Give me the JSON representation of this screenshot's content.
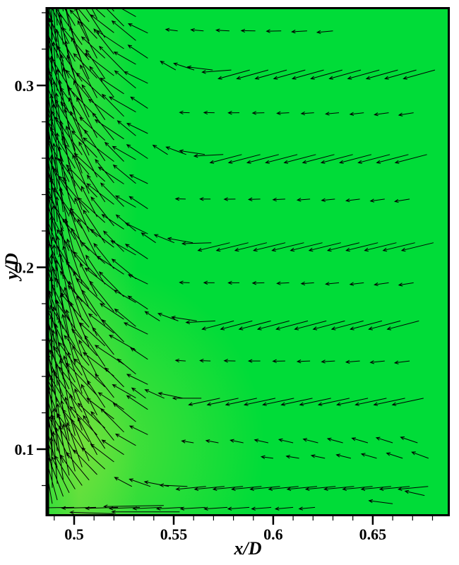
{
  "chart_data": {
    "type": "quiver",
    "title": "",
    "xlabel": "x/D",
    "ylabel": "y/D",
    "x_range": [
      0.4858,
      0.6887
    ],
    "y_range": [
      0.0631,
      0.3431
    ],
    "x_ticks": {
      "major": [
        0.5,
        0.55,
        0.6,
        0.65
      ],
      "labels": [
        "0.5",
        "0.55",
        "0.6",
        "0.65"
      ],
      "minor_step": 0.01
    },
    "y_ticks": {
      "major": [
        0.1,
        0.2,
        0.3
      ],
      "labels": [
        "0.1",
        "0.2",
        "0.3"
      ],
      "minor_step": 0.02
    },
    "legend": "none",
    "grid": false,
    "colors": {
      "flood_green": "#00dc38",
      "flood_green_light": "#8ce146",
      "glow_green": "#b4e43c",
      "vector": "#000000",
      "axis": "#000000",
      "background": "#ffffff"
    },
    "vector_rows": [
      {
        "y": 0.3085,
        "x0": 0.551,
        "dx": 0.0093,
        "n": 15,
        "len0": 0.009,
        "len1": 0.0165,
        "a0": 148,
        "a1": 197,
        "ramp": 4
      },
      {
        "y": 0.262,
        "x0": 0.547,
        "dx": 0.0093,
        "n": 15,
        "len0": 0.009,
        "len1": 0.0165,
        "a0": 145,
        "a1": 196,
        "ramp": 4
      },
      {
        "y": 0.2135,
        "x0": 0.541,
        "dx": 0.0093,
        "n": 16,
        "len0": 0.009,
        "len1": 0.0165,
        "a0": 143,
        "a1": 195,
        "ramp": 4
      },
      {
        "y": 0.1705,
        "x0": 0.543,
        "dx": 0.0093,
        "n": 15,
        "len0": 0.009,
        "len1": 0.0165,
        "a0": 145,
        "a1": 196,
        "ramp": 4
      },
      {
        "y": 0.128,
        "x0": 0.536,
        "dx": 0.0093,
        "n": 16,
        "len0": 0.009,
        "len1": 0.016,
        "a0": 141,
        "a1": 193,
        "ramp": 4
      },
      {
        "y": 0.0795,
        "x0": 0.529,
        "dx": 0.0093,
        "n": 17,
        "len0": 0.01,
        "len1": 0.015,
        "a0": 150,
        "a1": 186,
        "ramp": 4
      },
      {
        "y": 0.33,
        "x0": 0.552,
        "dx": 0.013,
        "n": 7,
        "len0": 0.006,
        "len1": 0.008,
        "a0": 172,
        "a1": 186,
        "ramp": 6
      },
      {
        "y": 0.285,
        "x0": 0.558,
        "dx": 0.0125,
        "n": 10,
        "len0": 0.005,
        "len1": 0.0075,
        "a0": 178,
        "a1": 190,
        "ramp": 9
      },
      {
        "y": 0.2375,
        "x0": 0.556,
        "dx": 0.0125,
        "n": 10,
        "len0": 0.005,
        "len1": 0.0075,
        "a0": 178,
        "a1": 190,
        "ramp": 9
      },
      {
        "y": 0.1915,
        "x0": 0.558,
        "dx": 0.0125,
        "n": 10,
        "len0": 0.005,
        "len1": 0.0075,
        "a0": 178,
        "a1": 190,
        "ramp": 9
      },
      {
        "y": 0.1485,
        "x0": 0.556,
        "dx": 0.0125,
        "n": 10,
        "len0": 0.005,
        "len1": 0.0075,
        "a0": 176,
        "a1": 188,
        "ramp": 9
      },
      {
        "y": 0.1035,
        "x0": 0.56,
        "dx": 0.0125,
        "n": 10,
        "len0": 0.006,
        "len1": 0.009,
        "a0": 170,
        "a1": 160,
        "ramp": 9
      },
      {
        "y": 0.095,
        "x0": 0.6,
        "dx": 0.013,
        "n": 7,
        "len0": 0.006,
        "len1": 0.009,
        "a0": 172,
        "a1": 158,
        "ramp": 6
      },
      {
        "y": 0.068,
        "x0": 0.5,
        "dx": 0.011,
        "n": 12,
        "len0": 0.018,
        "len1": 0.008,
        "a0": 181,
        "a1": 186,
        "ramp": 11
      }
    ],
    "left_columns": [
      {
        "x": 0.4865,
        "y0": 0.068,
        "dy": 0.0085,
        "n": 33,
        "len": 0.0235,
        "a": 91,
        "alt": 3
      },
      {
        "x": 0.489,
        "y0": 0.07,
        "dy": 0.0088,
        "n": 32,
        "len": 0.0255,
        "a": 95,
        "alt": 4
      },
      {
        "x": 0.4915,
        "y0": 0.072,
        "dy": 0.009,
        "n": 31,
        "len": 0.0265,
        "a": 99,
        "alt": 5
      },
      {
        "x": 0.4945,
        "y0": 0.074,
        "dy": 0.0092,
        "n": 30,
        "len": 0.0265,
        "a": 103,
        "alt": 6
      },
      {
        "x": 0.4975,
        "y0": 0.076,
        "dy": 0.0095,
        "n": 29,
        "len": 0.0255,
        "a": 107,
        "alt": 7
      },
      {
        "x": 0.5005,
        "y0": 0.078,
        "dy": 0.0098,
        "n": 28,
        "len": 0.0245,
        "a": 111,
        "alt": 8
      },
      {
        "x": 0.504,
        "y0": 0.08,
        "dy": 0.0101,
        "n": 27,
        "len": 0.0235,
        "a": 115,
        "alt": 8
      },
      {
        "x": 0.5075,
        "y0": 0.083,
        "dy": 0.0105,
        "n": 26,
        "len": 0.0225,
        "a": 119,
        "alt": 8
      },
      {
        "x": 0.5115,
        "y0": 0.086,
        "dy": 0.0109,
        "n": 25,
        "len": 0.021,
        "a": 123,
        "alt": 8
      },
      {
        "x": 0.5155,
        "y0": 0.089,
        "dy": 0.0113,
        "n": 24,
        "len": 0.0195,
        "a": 128,
        "alt": 7
      },
      {
        "x": 0.52,
        "y0": 0.093,
        "dy": 0.0118,
        "n": 23,
        "len": 0.018,
        "a": 133,
        "alt": 7
      },
      {
        "x": 0.525,
        "y0": 0.097,
        "dy": 0.0124,
        "n": 21,
        "len": 0.016,
        "a": 138,
        "alt": 6
      },
      {
        "x": 0.531,
        "y0": 0.102,
        "dy": 0.0131,
        "n": 20,
        "len": 0.014,
        "a": 143,
        "alt": 5
      },
      {
        "x": 0.537,
        "y0": 0.108,
        "dy": 0.0138,
        "n": 18,
        "len": 0.012,
        "a": 148,
        "alt": 4
      }
    ],
    "extra_vectors": [
      {
        "x": 0.545,
        "y": 0.069,
        "len": 0.03,
        "a": 181
      },
      {
        "x": 0.553,
        "y": 0.0655,
        "len": 0.034,
        "a": 180
      },
      {
        "x": 0.52,
        "y": 0.0645,
        "len": 0.022,
        "a": 178
      },
      {
        "x": 0.66,
        "y": 0.07,
        "len": 0.012,
        "a": 172
      },
      {
        "x": 0.676,
        "y": 0.0745,
        "len": 0.01,
        "a": 166
      }
    ]
  }
}
